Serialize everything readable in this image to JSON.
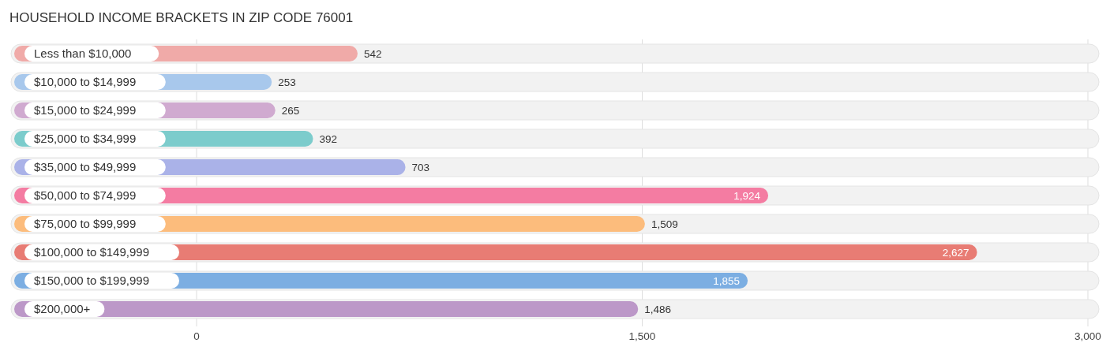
{
  "chart_data": {
    "type": "bar",
    "orientation": "horizontal",
    "title": "HOUSEHOLD INCOME BRACKETS IN ZIP CODE 76001",
    "categories": [
      "Less than $10,000",
      "$10,000 to $14,999",
      "$15,000 to $24,999",
      "$25,000 to $34,999",
      "$35,000 to $49,999",
      "$50,000 to $74,999",
      "$75,000 to $99,999",
      "$100,000 to $149,999",
      "$150,000 to $199,999",
      "$200,000+"
    ],
    "values": [
      542,
      253,
      265,
      392,
      703,
      1924,
      1509,
      2627,
      1855,
      1486
    ],
    "colors": [
      "#f0aaa8",
      "#a8c8ec",
      "#d0aad0",
      "#7ccccc",
      "#aab2e8",
      "#f47ca2",
      "#fcbc7c",
      "#e87c74",
      "#7caee2",
      "#bc98c8"
    ],
    "xlim": [
      0,
      3000
    ],
    "xticks": [
      {
        "value": 0,
        "label": "0"
      },
      {
        "value": 1500,
        "label": "1,500"
      },
      {
        "value": 3000,
        "label": "3,000"
      }
    ],
    "grid": "x",
    "value_labels": [
      "542",
      "253",
      "265",
      "392",
      "703",
      "1,924",
      "1,509",
      "2,627",
      "1,855",
      "1,486"
    ]
  }
}
